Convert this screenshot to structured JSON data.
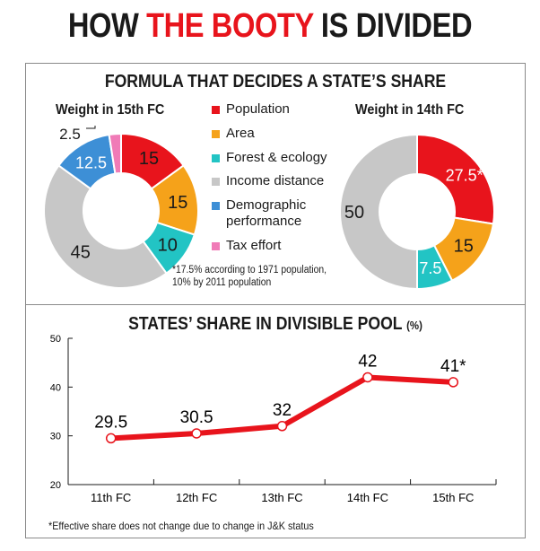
{
  "headline": {
    "part1": "HOW ",
    "part2": "THE BOOTY",
    "part3": " IS DIVIDED"
  },
  "formula_title": "FORMULA THAT DECIDES A STATE’S SHARE",
  "legend": [
    {
      "label": "Population",
      "color": "#e8141c"
    },
    {
      "label": "Area",
      "color": "#f5a21a"
    },
    {
      "label": "Forest & ecology",
      "color": "#22c4c4"
    },
    {
      "label": "Income distance",
      "color": "#c7c7c7"
    },
    {
      "label": "Demographic\nperformance",
      "color": "#3d8fd6"
    },
    {
      "label": "Tax effort",
      "color": "#f07bb7"
    }
  ],
  "footnote_donut": "*17.5% according to 1971 population,\n10% by 2011 population",
  "line_title": "STATES’ SHARE IN DIVISIBLE POOL",
  "line_unit": "(%)",
  "footnote_line": "*Effective share does not change due to change in J&K status",
  "chart_data": [
    {
      "type": "pie",
      "title": "Weight in 15th FC",
      "categories": [
        "Population",
        "Area",
        "Forest & ecology",
        "Income distance",
        "Demographic performance",
        "Tax effort"
      ],
      "values": [
        15,
        15,
        10,
        45,
        12.5,
        2.5
      ],
      "labels": [
        "15",
        "15",
        "10",
        "45",
        "12.5",
        "2.5"
      ],
      "colors": [
        "#e8141c",
        "#f5a21a",
        "#22c4c4",
        "#c7c7c7",
        "#3d8fd6",
        "#f07bb7"
      ]
    },
    {
      "type": "pie",
      "title": "Weight in 14th FC",
      "categories": [
        "Population",
        "Area",
        "Forest & ecology",
        "Income distance"
      ],
      "values": [
        27.5,
        15,
        7.5,
        50
      ],
      "labels": [
        "27.5*",
        "15",
        "7.5",
        "50"
      ],
      "colors": [
        "#e8141c",
        "#f5a21a",
        "#22c4c4",
        "#c7c7c7"
      ]
    },
    {
      "type": "line",
      "title": "STATES’ SHARE IN DIVISIBLE POOL (%)",
      "categories": [
        "11th FC",
        "12th FC",
        "13th FC",
        "14th FC",
        "15th FC"
      ],
      "values": [
        29.5,
        30.5,
        32,
        42,
        41
      ],
      "labels": [
        "29.5",
        "30.5",
        "32",
        "42",
        "41*"
      ],
      "ylim": [
        20,
        50
      ],
      "yticks": [
        "20",
        "30",
        "40",
        "50"
      ],
      "line_color": "#e8141c",
      "grid": false
    }
  ]
}
